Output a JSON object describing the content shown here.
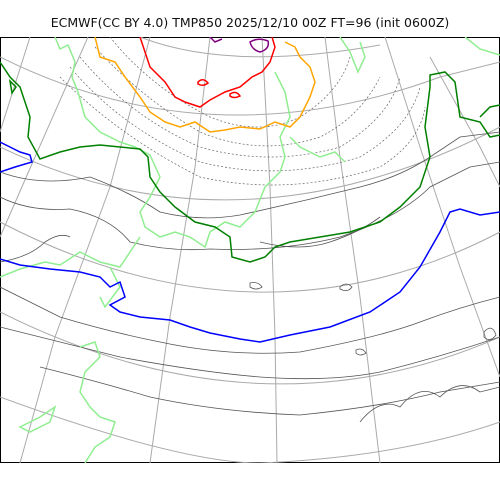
{
  "title": "ECMWF(CC BY 4.0) TMP850 2025/12/10 00Z FT=96 (init 0600Z)",
  "map": {
    "variable": "TMP850",
    "source": "ECMWF",
    "license": "CC BY 4.0",
    "valid_time": "2025/12/10 00Z",
    "forecast_hour": 96,
    "init": "0600Z",
    "layers": [
      {
        "name": "coastline",
        "color": "#404040"
      },
      {
        "name": "graticule",
        "color": "#aaaaaa"
      },
      {
        "name": "temperature-contours",
        "color": "#555555"
      }
    ],
    "highlighted_isotherms": [
      {
        "name": "light-green-isotherm",
        "color": "#90ee90"
      },
      {
        "name": "dark-green-isotherm",
        "color": "#008000"
      },
      {
        "name": "blue-isotherm",
        "color": "#0000ff"
      },
      {
        "name": "orange-isotherm",
        "color": "#ffa500"
      },
      {
        "name": "red-isotherm",
        "color": "#ff0000"
      },
      {
        "name": "purple-isotherm",
        "color": "#800080"
      }
    ]
  }
}
